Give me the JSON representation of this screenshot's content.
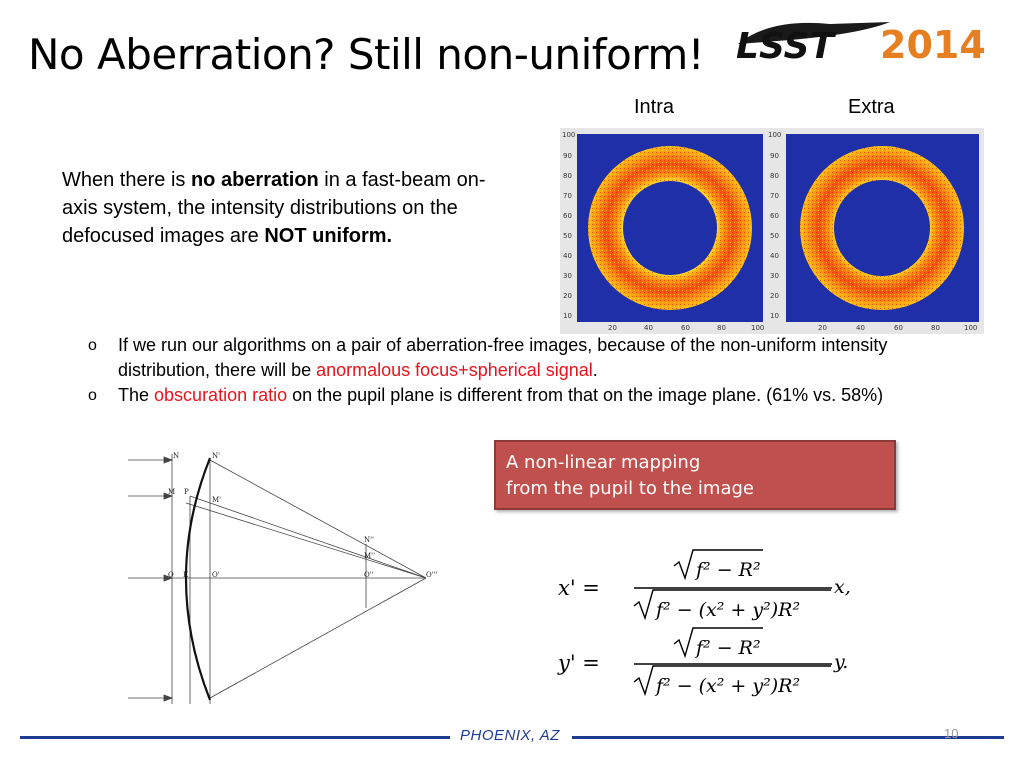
{
  "title": "No Aberration? Still non-uniform!",
  "logo": {
    "part1": "LSST",
    "part2": "2014"
  },
  "intro": {
    "t1": "When there is ",
    "b1": "no aberration",
    "t2": " in a fast-beam on-axis system, the intensity distributions on the defocused images are ",
    "b2": "NOT uniform."
  },
  "figure": {
    "labels": [
      "Intra",
      "Extra"
    ],
    "y_ticks": [
      "100",
      "90",
      "80",
      "70",
      "60",
      "50",
      "40",
      "30",
      "20",
      "10"
    ],
    "x_ticks": [
      "20",
      "40",
      "60",
      "80",
      "100"
    ]
  },
  "bullets": [
    {
      "mark": "o",
      "pre": "If we run our algorithms on a pair of aberration-free images, because of the non-uniform intensity distribution, there will be ",
      "red": "anormalous focus+spherical signal",
      "post": "."
    },
    {
      "mark": "o",
      "pre": "The ",
      "red": "obscuration ratio",
      "post": " on the pupil plane is different from that on the image plane. (61% vs. 58%)"
    }
  ],
  "callout": {
    "line1": "A non-linear mapping",
    "line2": "from the pupil to the image"
  },
  "diagram_labels": {
    "N": "N",
    "Np": "N'",
    "M": "M",
    "P": "P",
    "Mp": "M'",
    "O": "O",
    "K": "K",
    "Op": "O'",
    "Npp": "N''",
    "Mpp": "M''",
    "Opp": "O''",
    "Oppp": "O'''"
  },
  "equations": {
    "lhs1": "x' =",
    "lhs2": "y' =",
    "num": "f² − R²",
    "den": "f² − (x² + y²)R²",
    "rhs1": "x,",
    "rhs2": "y."
  },
  "footer": {
    "text": "PHOENIX, AZ",
    "page": "10"
  }
}
